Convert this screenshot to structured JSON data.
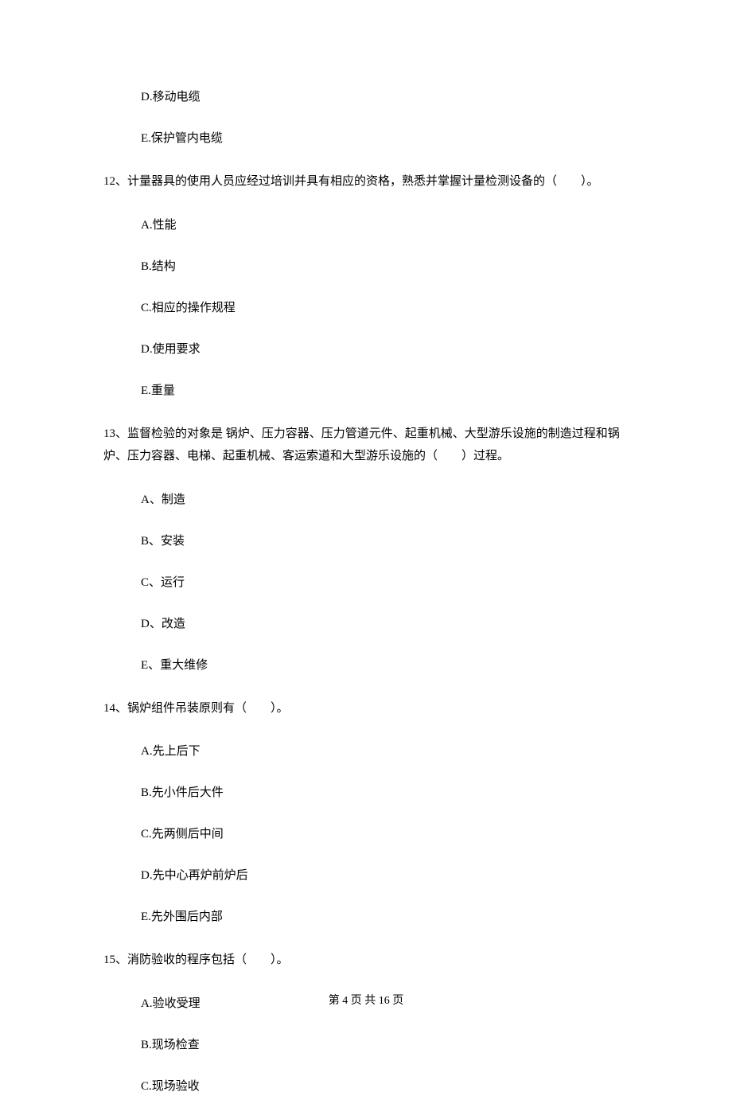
{
  "options_top": [
    "D.移动电缆",
    "E.保护管内电缆"
  ],
  "question12": {
    "text": "12、计量器具的使用人员应经过培训并具有相应的资格，熟悉并掌握计量检测设备的（　　）。",
    "options": [
      "A.性能",
      "B.结构",
      "C.相应的操作规程",
      "D.使用要求",
      "E.重量"
    ]
  },
  "question13": {
    "text": "13、监督检验的对象是 锅炉、压力容器、压力管道元件、起重机械、大型游乐设施的制造过程和锅炉、压力容器、电梯、起重机械、客运索道和大型游乐设施的（　　）过程。",
    "options": [
      "A、制造",
      "B、安装",
      "C、运行",
      "D、改造",
      "E、重大维修"
    ]
  },
  "question14": {
    "text": "14、锅炉组件吊装原则有（　　）。",
    "options": [
      "A.先上后下",
      "B.先小件后大件",
      "C.先两侧后中间",
      "D.先中心再炉前炉后",
      "E.先外围后内部"
    ]
  },
  "question15": {
    "text": "15、消防验收的程序包括（　　）。",
    "options": [
      "A.验收受理",
      "B.现场检查",
      "C.现场验收"
    ]
  },
  "footer": "第 4 页 共 16 页"
}
